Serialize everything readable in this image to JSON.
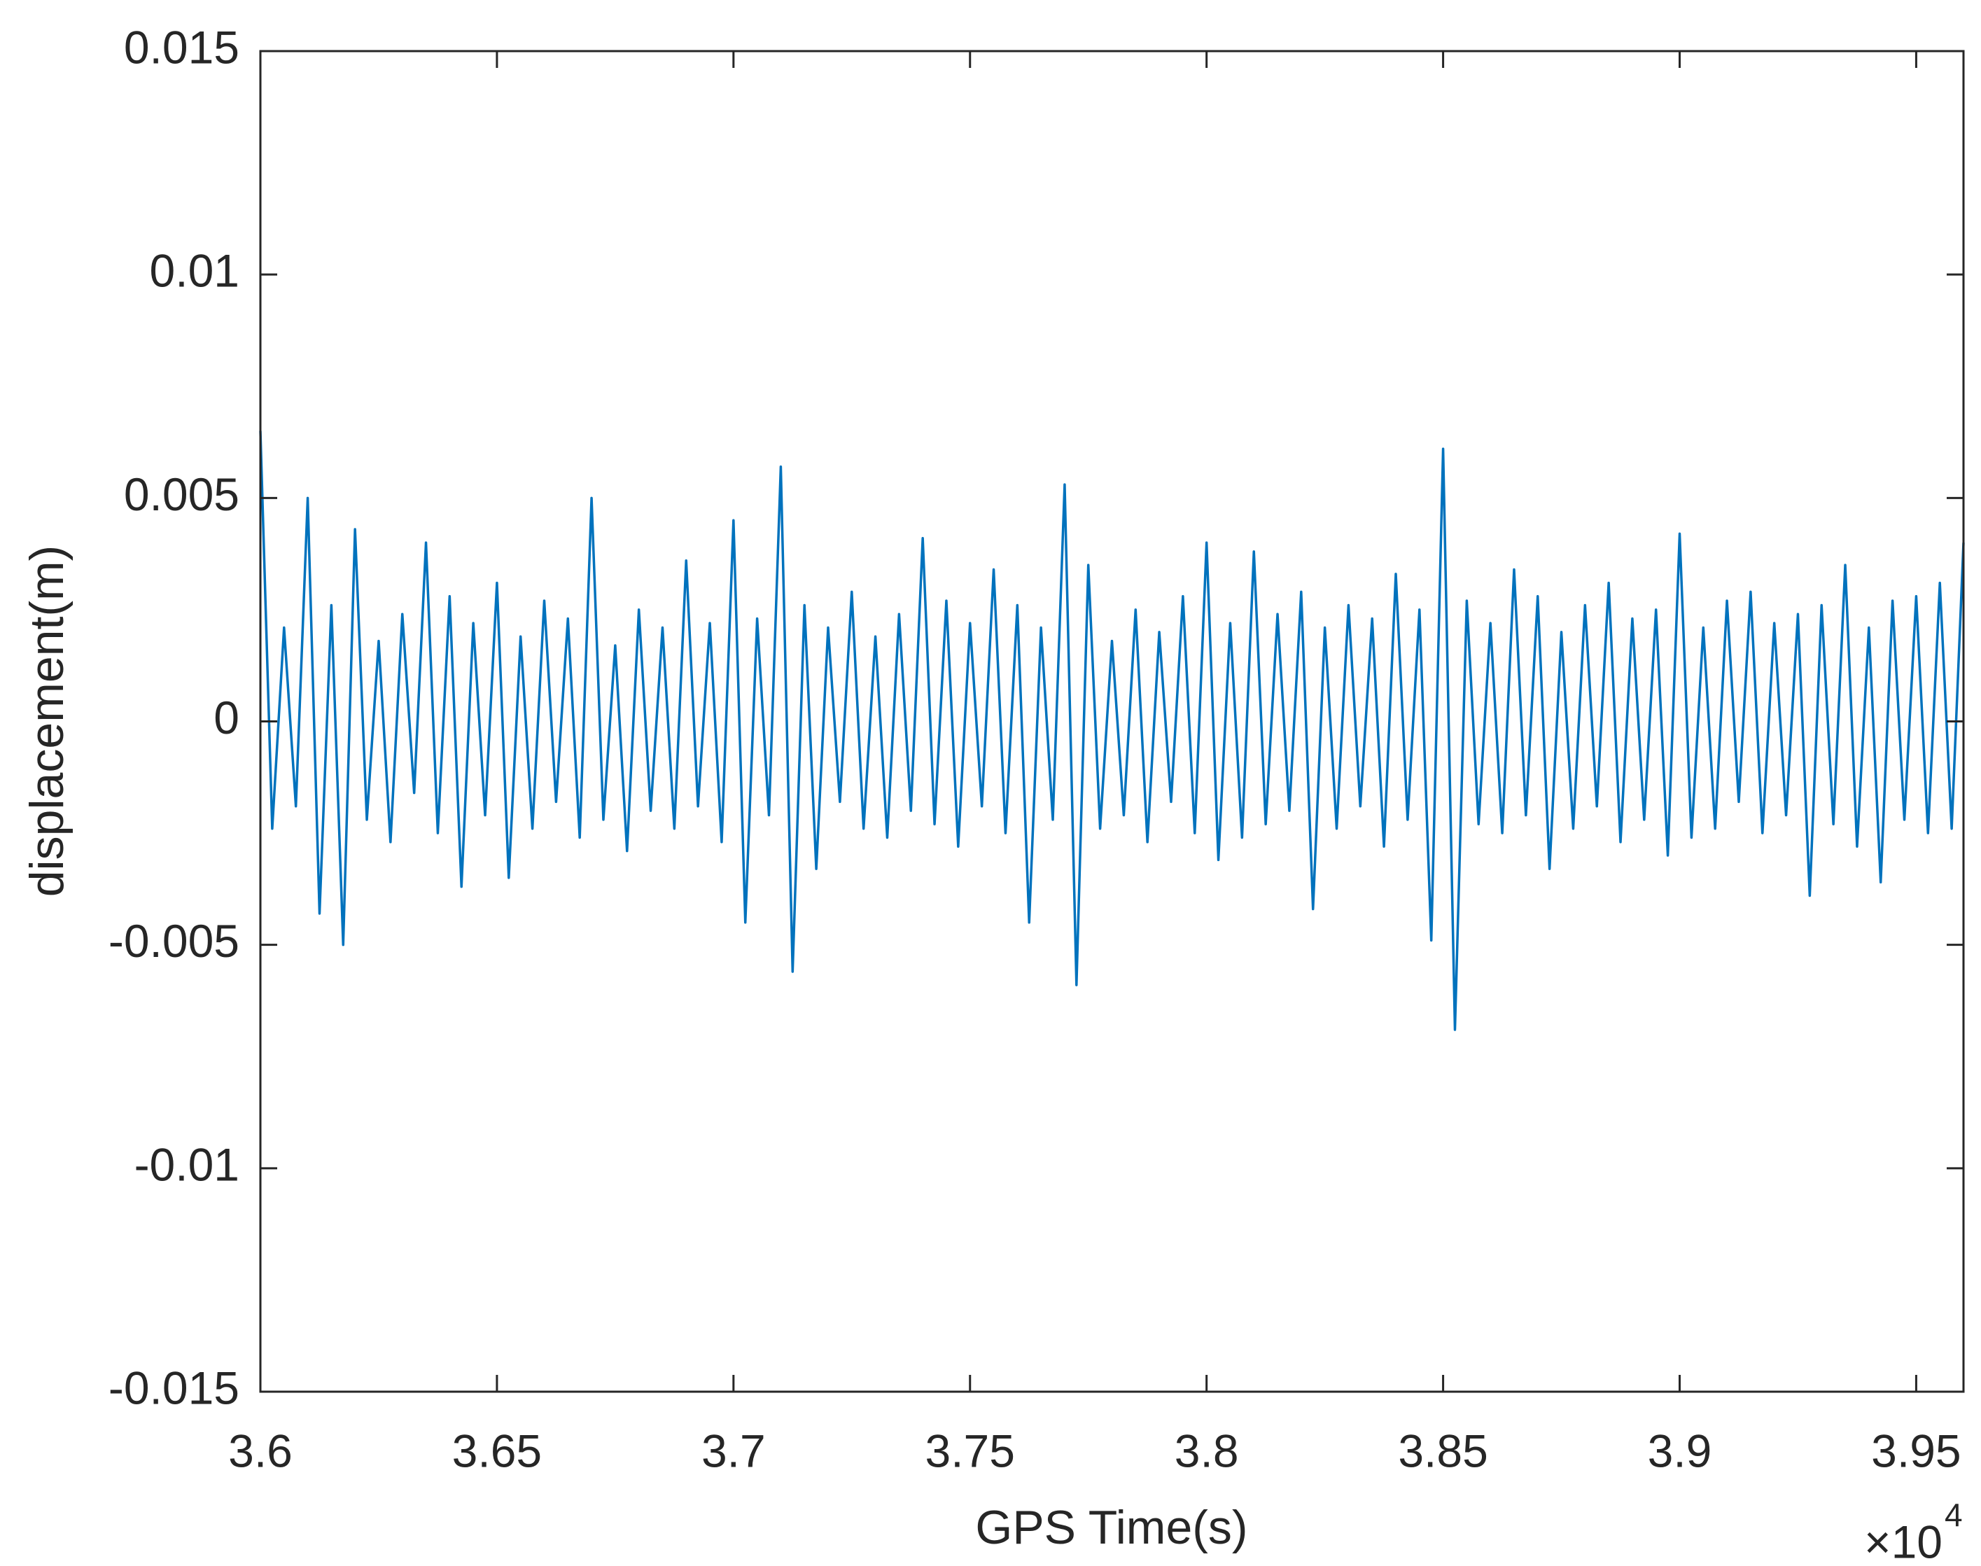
{
  "chart_data": {
    "type": "line",
    "x_label": "GPS Time(s)",
    "y_label": "displacement(m)",
    "x_multiplier": {
      "base": "×10",
      "exponent": "4"
    },
    "xlim": [
      36000,
      39600
    ],
    "ylim": [
      -0.015,
      0.015
    ],
    "xticks": [
      {
        "value": 36000,
        "label": "3.6"
      },
      {
        "value": 36500,
        "label": "3.65"
      },
      {
        "value": 37000,
        "label": "3.7"
      },
      {
        "value": 37500,
        "label": "3.75"
      },
      {
        "value": 38000,
        "label": "3.8"
      },
      {
        "value": 38500,
        "label": "3.85"
      },
      {
        "value": 39000,
        "label": "3.9"
      },
      {
        "value": 39500,
        "label": "3.95"
      }
    ],
    "yticks": [
      -0.015,
      -0.01,
      -0.005,
      0,
      0.005,
      0.01,
      0.015
    ],
    "grid": false,
    "series": [
      {
        "color": "#0072bd",
        "x": [
          36000,
          36025,
          36050,
          36075,
          36100,
          36125,
          36150,
          36175,
          36200,
          36225,
          36250,
          36275,
          36300,
          36325,
          36350,
          36375,
          36400,
          36425,
          36450,
          36475,
          36500,
          36525,
          36550,
          36575,
          36600,
          36625,
          36650,
          36675,
          36700,
          36725,
          36750,
          36775,
          36800,
          36825,
          36850,
          36875,
          36900,
          36925,
          36950,
          36975,
          37000,
          37025,
          37050,
          37075,
          37100,
          37125,
          37150,
          37175,
          37200,
          37225,
          37250,
          37275,
          37300,
          37325,
          37350,
          37375,
          37400,
          37425,
          37450,
          37475,
          37500,
          37525,
          37550,
          37575,
          37600,
          37625,
          37650,
          37675,
          37700,
          37725,
          37750,
          37775,
          37800,
          37825,
          37850,
          37875,
          37900,
          37925,
          37950,
          37975,
          38000,
          38025,
          38050,
          38075,
          38100,
          38125,
          38150,
          38175,
          38200,
          38225,
          38250,
          38275,
          38300,
          38325,
          38350,
          38375,
          38400,
          38425,
          38450,
          38475,
          38500,
          38525,
          38550,
          38575,
          38600,
          38625,
          38650,
          38675,
          38700,
          38725,
          38750,
          38775,
          38800,
          38825,
          38850,
          38875,
          38900,
          38925,
          38950,
          38975,
          39000,
          39025,
          39050,
          39075,
          39100,
          39125,
          39150,
          39175,
          39200,
          39225,
          39250,
          39275,
          39300,
          39325,
          39350,
          39375,
          39400,
          39425,
          39450,
          39475,
          39500,
          39525,
          39550,
          39575,
          39600
        ],
        "values": [
          0.0065,
          -0.0024,
          0.0021,
          -0.0019,
          0.005,
          -0.0043,
          0.0026,
          -0.005,
          0.0043,
          -0.0022,
          0.0018,
          -0.0027,
          0.0024,
          -0.0016,
          0.004,
          -0.0025,
          0.0028,
          -0.0037,
          0.0022,
          -0.0021,
          0.0031,
          -0.0035,
          0.0019,
          -0.0024,
          0.0027,
          -0.0018,
          0.0023,
          -0.0026,
          0.005,
          -0.0022,
          0.0017,
          -0.0029,
          0.0025,
          -0.002,
          0.0021,
          -0.0024,
          0.0036,
          -0.0019,
          0.0022,
          -0.0027,
          0.0045,
          -0.0045,
          0.0023,
          -0.0021,
          0.0057,
          -0.0056,
          0.0026,
          -0.0033,
          0.0021,
          -0.0018,
          0.0029,
          -0.0024,
          0.0019,
          -0.0026,
          0.0024,
          -0.002,
          0.0041,
          -0.0023,
          0.0027,
          -0.0028,
          0.0022,
          -0.0019,
          0.0034,
          -0.0025,
          0.0026,
          -0.0045,
          0.0021,
          -0.0022,
          0.0053,
          -0.0059,
          0.0035,
          -0.0024,
          0.0018,
          -0.0021,
          0.0025,
          -0.0027,
          0.002,
          -0.0018,
          0.0028,
          -0.0025,
          0.004,
          -0.0031,
          0.0022,
          -0.0026,
          0.0038,
          -0.0023,
          0.0024,
          -0.002,
          0.0029,
          -0.0042,
          0.0021,
          -0.0024,
          0.0026,
          -0.0019,
          0.0023,
          -0.0028,
          0.0033,
          -0.0022,
          0.0025,
          -0.0049,
          0.0061,
          -0.0069,
          0.0027,
          -0.0023,
          0.0022,
          -0.0025,
          0.0034,
          -0.0021,
          0.0028,
          -0.0033,
          0.002,
          -0.0024,
          0.0026,
          -0.0019,
          0.0031,
          -0.0027,
          0.0023,
          -0.0022,
          0.0025,
          -0.003,
          0.0042,
          -0.0026,
          0.0021,
          -0.0024,
          0.0027,
          -0.0018,
          0.0029,
          -0.0025,
          0.0022,
          -0.0021,
          0.0024,
          -0.0039,
          0.0026,
          -0.0023,
          0.0035,
          -0.0028,
          0.0021,
          -0.0036,
          0.0027,
          -0.0022,
          0.0028,
          -0.0025,
          0.0031,
          -0.0024,
          0.004
        ]
      }
    ]
  }
}
